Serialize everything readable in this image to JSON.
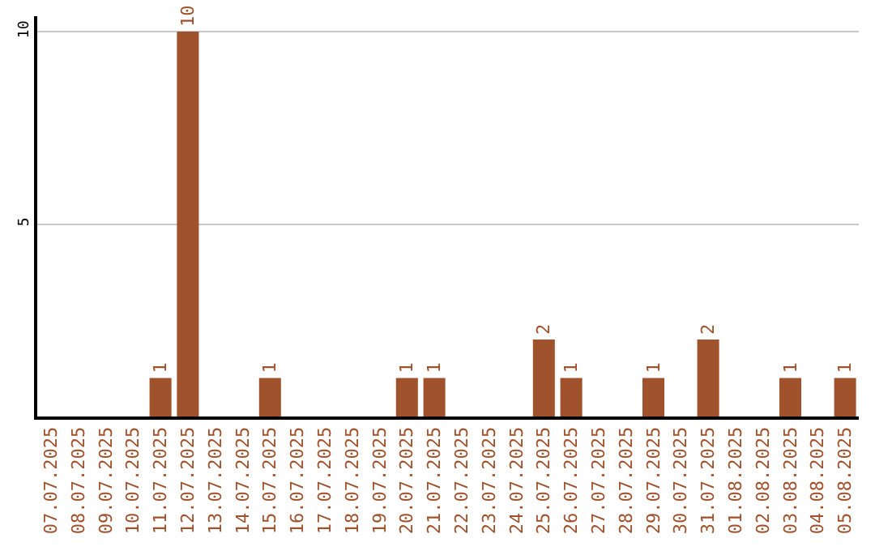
{
  "chart_data": {
    "type": "bar",
    "categories": [
      "07.07.2025",
      "08.07.2025",
      "09.07.2025",
      "10.07.2025",
      "11.07.2025",
      "12.07.2025",
      "13.07.2025",
      "14.07.2025",
      "15.07.2025",
      "16.07.2025",
      "17.07.2025",
      "18.07.2025",
      "19.07.2025",
      "20.07.2025",
      "21.07.2025",
      "22.07.2025",
      "23.07.2025",
      "24.07.2025",
      "25.07.2025",
      "26.07.2025",
      "27.07.2025",
      "28.07.2025",
      "29.07.2025",
      "30.07.2025",
      "31.07.2025",
      "01.08.2025",
      "02.08.2025",
      "03.08.2025",
      "04.08.2025",
      "05.08.2025"
    ],
    "values": [
      0,
      0,
      0,
      0,
      1,
      10,
      0,
      0,
      1,
      0,
      0,
      0,
      0,
      1,
      1,
      0,
      0,
      0,
      2,
      1,
      0,
      0,
      1,
      0,
      2,
      0,
      0,
      1,
      0,
      1
    ],
    "value_labels": [
      null,
      null,
      null,
      null,
      "1",
      "10",
      null,
      null,
      "1",
      null,
      null,
      null,
      null,
      "1",
      "1",
      null,
      null,
      null,
      "2",
      "1",
      null,
      null,
      "1",
      null,
      "2",
      null,
      null,
      "1",
      null,
      "1"
    ],
    "color": "#a0522d",
    "ylim": [
      0,
      10.4
    ],
    "yticks": [
      5,
      10
    ],
    "grid": "y",
    "legend": false
  }
}
